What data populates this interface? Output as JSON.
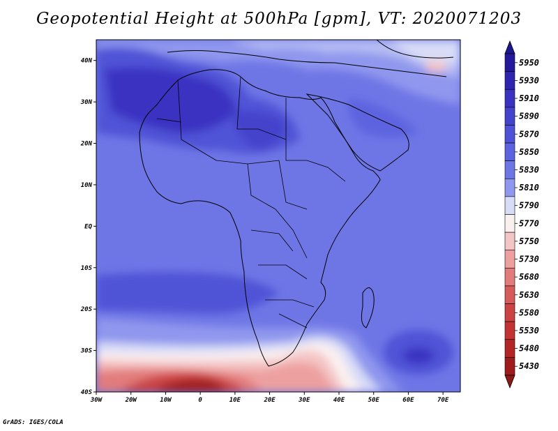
{
  "title": "Geopotential Height at 500hPa [gpm], VT: 2020071203",
  "footer": "GrADS: IGES/COLA",
  "map": {
    "lat_labels": [
      "40N",
      "30N",
      "20N",
      "10N",
      "EQ",
      "10S",
      "20S",
      "30S",
      "40S"
    ],
    "lon_labels": [
      "30W",
      "20W",
      "10W",
      "0",
      "10E",
      "20E",
      "30E",
      "40E",
      "50E",
      "60E",
      "70E"
    ],
    "lat_range": [
      -40,
      45
    ],
    "lon_range": [
      -30,
      75
    ]
  },
  "colorbar": {
    "levels": [
      {
        "label": "5950",
        "color": "#26189a"
      },
      {
        "label": "5930",
        "color": "#2f24b0"
      },
      {
        "label": "5910",
        "color": "#3a33c2"
      },
      {
        "label": "5890",
        "color": "#4443cc"
      },
      {
        "label": "5870",
        "color": "#4f52d6"
      },
      {
        "label": "5850",
        "color": "#5d63df"
      },
      {
        "label": "5830",
        "color": "#6e76e6"
      },
      {
        "label": "5810",
        "color": "#8f97ee"
      },
      {
        "label": "5790",
        "color": "#d8dcf7"
      },
      {
        "label": "5770",
        "color": "#fbf0f0"
      },
      {
        "label": "5750",
        "color": "#f4c5c5"
      },
      {
        "label": "5730",
        "color": "#eda0a0"
      },
      {
        "label": "5680",
        "color": "#e27b7b"
      },
      {
        "label": "5630",
        "color": "#d65b5b"
      },
      {
        "label": "5580",
        "color": "#cb4343"
      },
      {
        "label": "5530",
        "color": "#c23333"
      },
      {
        "label": "5480",
        "color": "#b32626"
      },
      {
        "label": "5430",
        "color": "#a01b1b"
      }
    ],
    "top_arrow_color": "#1e1890",
    "bottom_arrow_color": "#8e1818"
  }
}
